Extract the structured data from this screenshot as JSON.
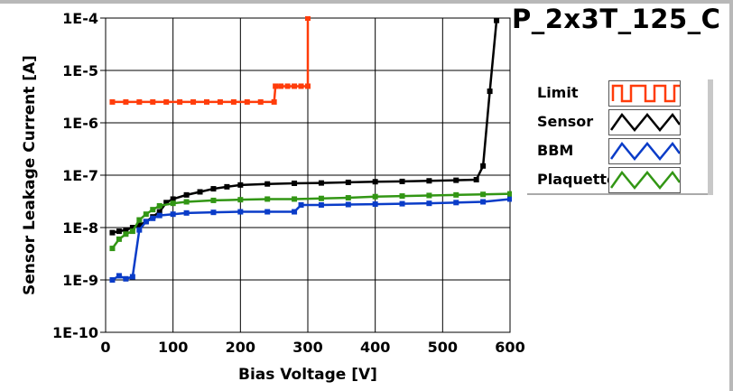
{
  "chart_data": {
    "type": "line",
    "title": "P_2x3T_125_C",
    "xlabel": "Bias Voltage [V]",
    "ylabel": "Sensor Leakage Current [A]",
    "xlim": [
      0,
      600
    ],
    "ylim": [
      1e-10,
      0.0001
    ],
    "yscale": "log",
    "grid": true,
    "legend_position": "right",
    "xticks": [
      "0",
      "100",
      "200",
      "300",
      "400",
      "500",
      "600"
    ],
    "xtick_values": [
      0,
      100,
      200,
      300,
      400,
      500,
      600
    ],
    "yticks": [
      "1E-4",
      "1E-5",
      "1E-6",
      "1E-7",
      "1E-8",
      "1E-9",
      "1E-10"
    ],
    "ytick_values": [
      0.0001,
      1e-05,
      1e-06,
      1e-07,
      1e-08,
      1e-09,
      1e-10
    ],
    "series": [
      {
        "name": "Limit",
        "color": "#ff3c0a",
        "x": [
          10,
          30,
          50,
          70,
          90,
          110,
          130,
          150,
          170,
          190,
          210,
          230,
          250,
          252,
          260,
          270,
          280,
          290,
          300,
          300
        ],
        "y": [
          2.5e-06,
          2.5e-06,
          2.5e-06,
          2.5e-06,
          2.5e-06,
          2.5e-06,
          2.5e-06,
          2.5e-06,
          2.5e-06,
          2.5e-06,
          2.5e-06,
          2.5e-06,
          2.5e-06,
          5e-06,
          5e-06,
          5e-06,
          5e-06,
          5e-06,
          5e-06,
          0.0001
        ]
      },
      {
        "name": "Sensor",
        "color": "#000000",
        "x": [
          10,
          20,
          30,
          40,
          50,
          60,
          70,
          80,
          90,
          100,
          120,
          140,
          160,
          180,
          200,
          240,
          280,
          320,
          360,
          400,
          440,
          480,
          520,
          550,
          560,
          570,
          580
        ],
        "y": [
          8e-09,
          8.5e-09,
          9e-09,
          1e-08,
          1.1e-08,
          1.3e-08,
          1.6e-08,
          2e-08,
          3e-08,
          3.5e-08,
          4.2e-08,
          4.8e-08,
          5.5e-08,
          6e-08,
          6.5e-08,
          6.8e-08,
          7e-08,
          7.1e-08,
          7.3e-08,
          7.5e-08,
          7.6e-08,
          7.8e-08,
          8e-08,
          8.2e-08,
          1.5e-07,
          4e-06,
          9e-05
        ]
      },
      {
        "name": "BBM",
        "color": "#0a3cc8",
        "x": [
          10,
          20,
          30,
          40,
          50,
          60,
          70,
          80,
          100,
          120,
          160,
          200,
          240,
          280,
          290,
          320,
          360,
          400,
          440,
          480,
          520,
          560,
          600
        ],
        "y": [
          1e-09,
          1.2e-09,
          1.05e-09,
          1.15e-09,
          9e-09,
          1.3e-08,
          1.5e-08,
          1.7e-08,
          1.8e-08,
          1.9e-08,
          1.95e-08,
          2e-08,
          2e-08,
          2e-08,
          2.7e-08,
          2.7e-08,
          2.75e-08,
          2.8e-08,
          2.85e-08,
          2.9e-08,
          3e-08,
          3.1e-08,
          3.5e-08
        ]
      },
      {
        "name": "Plaquette",
        "color": "#329614",
        "x": [
          10,
          20,
          30,
          40,
          50,
          60,
          70,
          80,
          100,
          120,
          160,
          200,
          240,
          280,
          320,
          360,
          400,
          440,
          480,
          520,
          560,
          600
        ],
        "y": [
          4e-09,
          6e-09,
          7.5e-09,
          8.5e-09,
          1.4e-08,
          1.8e-08,
          2.2e-08,
          2.6e-08,
          2.9e-08,
          3.1e-08,
          3.3e-08,
          3.4e-08,
          3.5e-08,
          3.5e-08,
          3.6e-08,
          3.7e-08,
          3.9e-08,
          4e-08,
          4.1e-08,
          4.2e-08,
          4.3e-08,
          4.4e-08
        ]
      }
    ]
  }
}
